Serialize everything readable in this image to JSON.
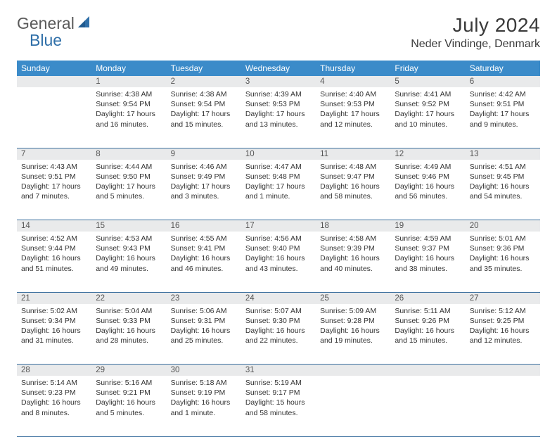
{
  "brand": {
    "part1": "General",
    "part2": "Blue"
  },
  "title": "July 2024",
  "location": "Neder Vindinge, Denmark",
  "colors": {
    "header_bg": "#3b8bc9",
    "header_text": "#ffffff",
    "daynum_bg": "#e9eaeb",
    "daynum_text": "#555555",
    "row_divider": "#3b6f9e",
    "body_text": "#333333",
    "logo_gray": "#5a5a5a",
    "logo_blue": "#2f6fa8",
    "page_bg": "#ffffff"
  },
  "layout": {
    "columns": 7,
    "weeks": 5,
    "cell_font_size_pt": 10.5,
    "daynum_font_size_pt": 11.5,
    "header_font_size_pt": 12,
    "title_font_size_pt": 28,
    "location_font_size_pt": 16
  },
  "weekdays": [
    "Sunday",
    "Monday",
    "Tuesday",
    "Wednesday",
    "Thursday",
    "Friday",
    "Saturday"
  ],
  "weeks": [
    [
      null,
      {
        "n": "1",
        "sr": "Sunrise: 4:38 AM",
        "ss": "Sunset: 9:54 PM",
        "dl": "Daylight: 17 hours and 16 minutes."
      },
      {
        "n": "2",
        "sr": "Sunrise: 4:38 AM",
        "ss": "Sunset: 9:54 PM",
        "dl": "Daylight: 17 hours and 15 minutes."
      },
      {
        "n": "3",
        "sr": "Sunrise: 4:39 AM",
        "ss": "Sunset: 9:53 PM",
        "dl": "Daylight: 17 hours and 13 minutes."
      },
      {
        "n": "4",
        "sr": "Sunrise: 4:40 AM",
        "ss": "Sunset: 9:53 PM",
        "dl": "Daylight: 17 hours and 12 minutes."
      },
      {
        "n": "5",
        "sr": "Sunrise: 4:41 AM",
        "ss": "Sunset: 9:52 PM",
        "dl": "Daylight: 17 hours and 10 minutes."
      },
      {
        "n": "6",
        "sr": "Sunrise: 4:42 AM",
        "ss": "Sunset: 9:51 PM",
        "dl": "Daylight: 17 hours and 9 minutes."
      }
    ],
    [
      {
        "n": "7",
        "sr": "Sunrise: 4:43 AM",
        "ss": "Sunset: 9:51 PM",
        "dl": "Daylight: 17 hours and 7 minutes."
      },
      {
        "n": "8",
        "sr": "Sunrise: 4:44 AM",
        "ss": "Sunset: 9:50 PM",
        "dl": "Daylight: 17 hours and 5 minutes."
      },
      {
        "n": "9",
        "sr": "Sunrise: 4:46 AM",
        "ss": "Sunset: 9:49 PM",
        "dl": "Daylight: 17 hours and 3 minutes."
      },
      {
        "n": "10",
        "sr": "Sunrise: 4:47 AM",
        "ss": "Sunset: 9:48 PM",
        "dl": "Daylight: 17 hours and 1 minute."
      },
      {
        "n": "11",
        "sr": "Sunrise: 4:48 AM",
        "ss": "Sunset: 9:47 PM",
        "dl": "Daylight: 16 hours and 58 minutes."
      },
      {
        "n": "12",
        "sr": "Sunrise: 4:49 AM",
        "ss": "Sunset: 9:46 PM",
        "dl": "Daylight: 16 hours and 56 minutes."
      },
      {
        "n": "13",
        "sr": "Sunrise: 4:51 AM",
        "ss": "Sunset: 9:45 PM",
        "dl": "Daylight: 16 hours and 54 minutes."
      }
    ],
    [
      {
        "n": "14",
        "sr": "Sunrise: 4:52 AM",
        "ss": "Sunset: 9:44 PM",
        "dl": "Daylight: 16 hours and 51 minutes."
      },
      {
        "n": "15",
        "sr": "Sunrise: 4:53 AM",
        "ss": "Sunset: 9:43 PM",
        "dl": "Daylight: 16 hours and 49 minutes."
      },
      {
        "n": "16",
        "sr": "Sunrise: 4:55 AM",
        "ss": "Sunset: 9:41 PM",
        "dl": "Daylight: 16 hours and 46 minutes."
      },
      {
        "n": "17",
        "sr": "Sunrise: 4:56 AM",
        "ss": "Sunset: 9:40 PM",
        "dl": "Daylight: 16 hours and 43 minutes."
      },
      {
        "n": "18",
        "sr": "Sunrise: 4:58 AM",
        "ss": "Sunset: 9:39 PM",
        "dl": "Daylight: 16 hours and 40 minutes."
      },
      {
        "n": "19",
        "sr": "Sunrise: 4:59 AM",
        "ss": "Sunset: 9:37 PM",
        "dl": "Daylight: 16 hours and 38 minutes."
      },
      {
        "n": "20",
        "sr": "Sunrise: 5:01 AM",
        "ss": "Sunset: 9:36 PM",
        "dl": "Daylight: 16 hours and 35 minutes."
      }
    ],
    [
      {
        "n": "21",
        "sr": "Sunrise: 5:02 AM",
        "ss": "Sunset: 9:34 PM",
        "dl": "Daylight: 16 hours and 31 minutes."
      },
      {
        "n": "22",
        "sr": "Sunrise: 5:04 AM",
        "ss": "Sunset: 9:33 PM",
        "dl": "Daylight: 16 hours and 28 minutes."
      },
      {
        "n": "23",
        "sr": "Sunrise: 5:06 AM",
        "ss": "Sunset: 9:31 PM",
        "dl": "Daylight: 16 hours and 25 minutes."
      },
      {
        "n": "24",
        "sr": "Sunrise: 5:07 AM",
        "ss": "Sunset: 9:30 PM",
        "dl": "Daylight: 16 hours and 22 minutes."
      },
      {
        "n": "25",
        "sr": "Sunrise: 5:09 AM",
        "ss": "Sunset: 9:28 PM",
        "dl": "Daylight: 16 hours and 19 minutes."
      },
      {
        "n": "26",
        "sr": "Sunrise: 5:11 AM",
        "ss": "Sunset: 9:26 PM",
        "dl": "Daylight: 16 hours and 15 minutes."
      },
      {
        "n": "27",
        "sr": "Sunrise: 5:12 AM",
        "ss": "Sunset: 9:25 PM",
        "dl": "Daylight: 16 hours and 12 minutes."
      }
    ],
    [
      {
        "n": "28",
        "sr": "Sunrise: 5:14 AM",
        "ss": "Sunset: 9:23 PM",
        "dl": "Daylight: 16 hours and 8 minutes."
      },
      {
        "n": "29",
        "sr": "Sunrise: 5:16 AM",
        "ss": "Sunset: 9:21 PM",
        "dl": "Daylight: 16 hours and 5 minutes."
      },
      {
        "n": "30",
        "sr": "Sunrise: 5:18 AM",
        "ss": "Sunset: 9:19 PM",
        "dl": "Daylight: 16 hours and 1 minute."
      },
      {
        "n": "31",
        "sr": "Sunrise: 5:19 AM",
        "ss": "Sunset: 9:17 PM",
        "dl": "Daylight: 15 hours and 58 minutes."
      },
      null,
      null,
      null
    ]
  ]
}
